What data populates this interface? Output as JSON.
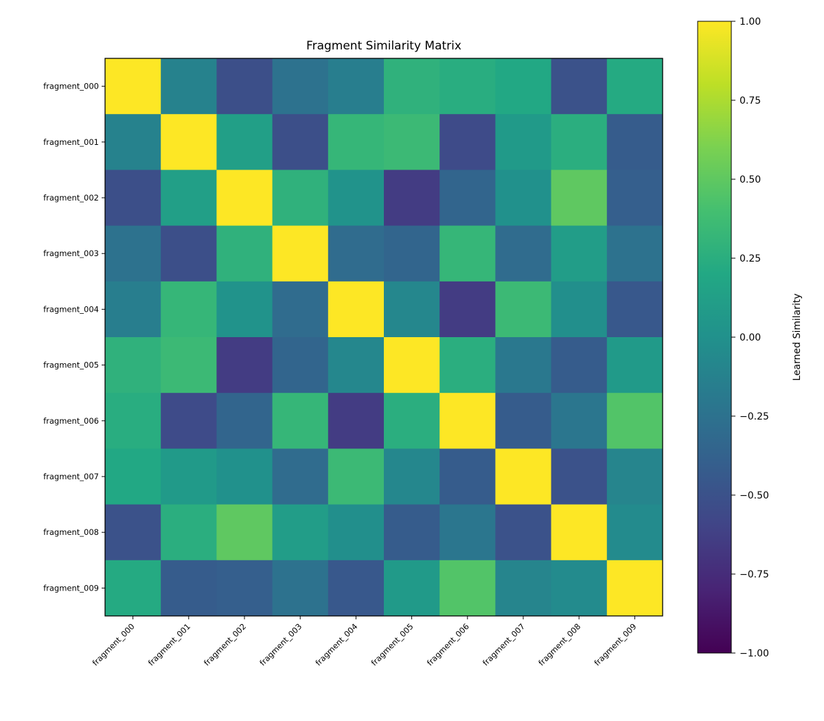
{
  "chart_data": {
    "type": "heatmap",
    "title": "Fragment Similarity Matrix",
    "x_categories": [
      "fragment_000",
      "fragment_001",
      "fragment_002",
      "fragment_003",
      "fragment_004",
      "fragment_005",
      "fragment_006",
      "fragment_007",
      "fragment_008",
      "fragment_009"
    ],
    "y_categories": [
      "fragment_000",
      "fragment_001",
      "fragment_002",
      "fragment_003",
      "fragment_004",
      "fragment_005",
      "fragment_006",
      "fragment_007",
      "fragment_008",
      "fragment_009"
    ],
    "values": [
      [
        1.0,
        -0.12,
        -0.52,
        -0.25,
        -0.15,
        0.28,
        0.24,
        0.2,
        -0.5,
        0.22
      ],
      [
        -0.12,
        1.0,
        0.12,
        -0.52,
        0.32,
        0.35,
        -0.55,
        0.08,
        0.25,
        -0.42
      ],
      [
        -0.52,
        0.12,
        1.0,
        0.28,
        0.02,
        -0.65,
        -0.35,
        0.0,
        0.5,
        -0.4
      ],
      [
        -0.25,
        -0.52,
        0.28,
        1.0,
        -0.3,
        -0.35,
        0.32,
        -0.3,
        0.1,
        -0.25
      ],
      [
        -0.15,
        0.32,
        0.02,
        -0.3,
        1.0,
        -0.08,
        -0.65,
        0.35,
        -0.02,
        -0.45
      ],
      [
        0.28,
        0.35,
        -0.65,
        -0.35,
        -0.08,
        1.0,
        0.25,
        -0.2,
        -0.42,
        0.08
      ],
      [
        0.24,
        -0.55,
        -0.35,
        0.32,
        -0.65,
        0.25,
        1.0,
        -0.42,
        -0.22,
        0.45
      ],
      [
        0.2,
        0.08,
        0.0,
        -0.3,
        0.35,
        -0.08,
        -0.42,
        1.0,
        -0.5,
        -0.1
      ],
      [
        -0.5,
        0.25,
        0.5,
        0.1,
        -0.02,
        -0.42,
        -0.22,
        -0.5,
        1.0,
        -0.05
      ],
      [
        0.22,
        -0.42,
        -0.4,
        -0.25,
        -0.45,
        0.08,
        0.45,
        -0.1,
        -0.05,
        1.0
      ]
    ],
    "colormap": "viridis",
    "colorbar": {
      "label": "Learned Similarity",
      "range": [
        -1.0,
        1.0
      ],
      "ticks": [
        "1.00",
        "0.75",
        "0.50",
        "0.25",
        "0.00",
        "−0.25",
        "−0.50",
        "−0.75",
        "−1.00"
      ],
      "tick_values": [
        1.0,
        0.75,
        0.5,
        0.25,
        0.0,
        -0.25,
        -0.5,
        -0.75,
        -1.0
      ]
    }
  }
}
